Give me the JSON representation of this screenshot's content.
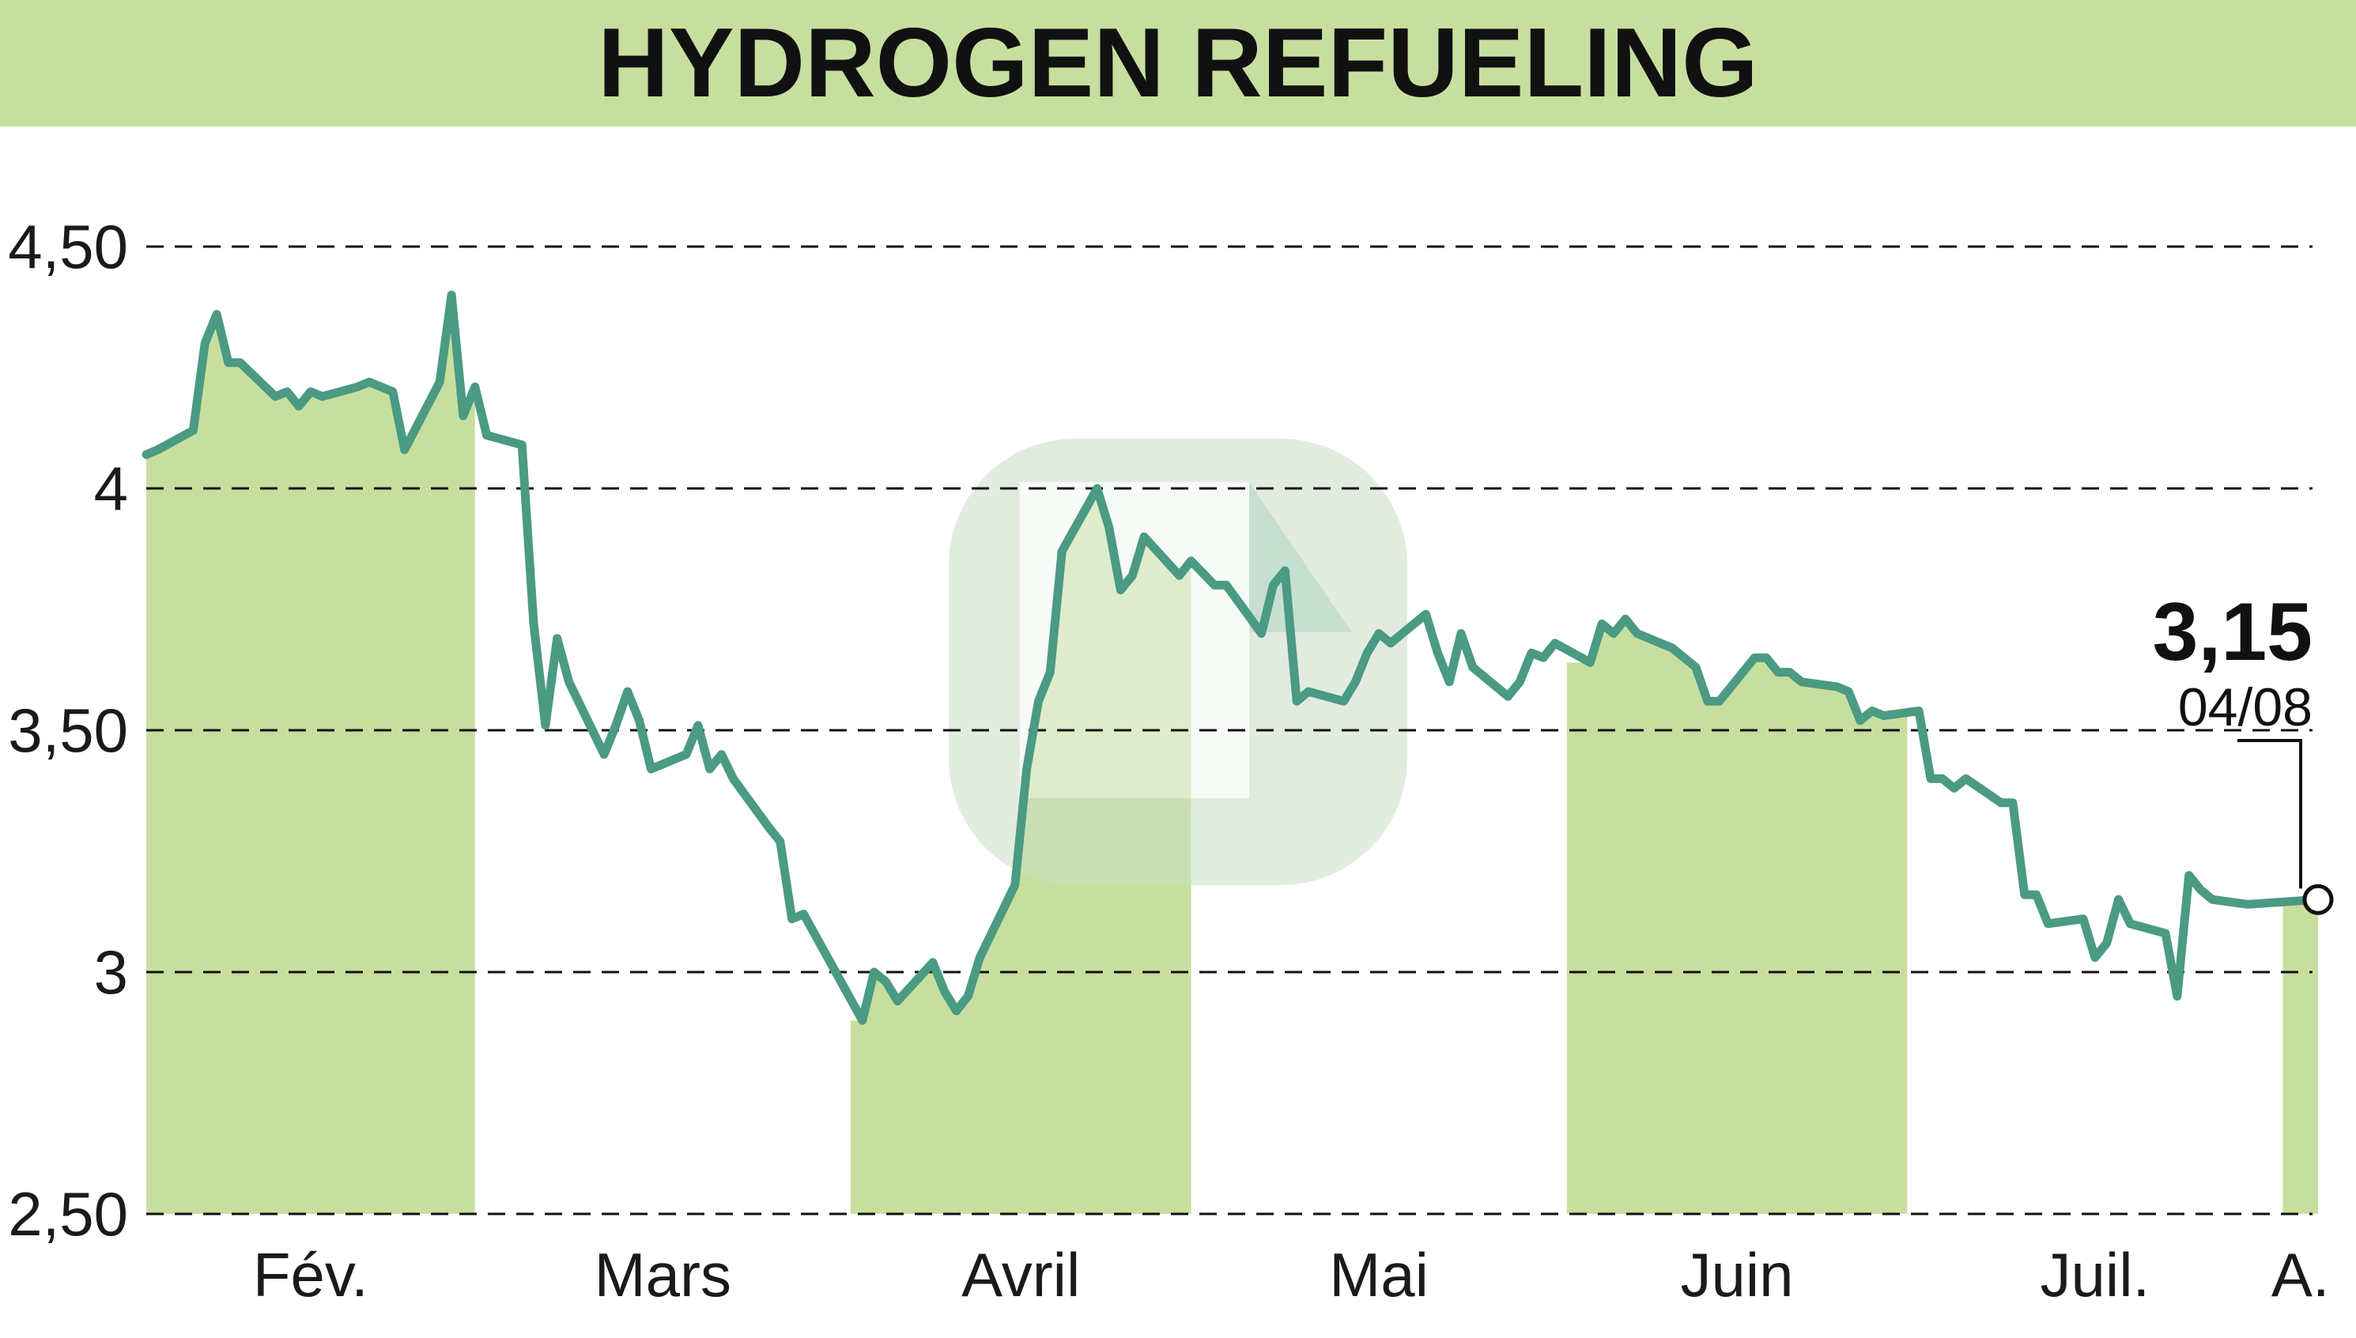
{
  "title": "HYDROGEN REFUELING",
  "colors": {
    "title_band": "#c7df9e",
    "month_shade": "#c7df9e",
    "line": "#4a9a84",
    "grid": "#111111",
    "watermark": "#c9dec5"
  },
  "watermark": "logo",
  "chart_data": {
    "type": "line",
    "title": "HYDROGEN REFUELING",
    "xlabel": "",
    "ylabel": "",
    "ylim": [
      2.5,
      4.5
    ],
    "yticks": [
      {
        "value": 4.5,
        "label": "4,50"
      },
      {
        "value": 4.0,
        "label": "4"
      },
      {
        "value": 3.5,
        "label": "3,50"
      },
      {
        "value": 3.0,
        "label": "3"
      },
      {
        "value": 2.5,
        "label": "2,50"
      }
    ],
    "grid": "horizontal dashed",
    "month_labels": [
      "Fév.",
      "Mars",
      "Avril",
      "Mai",
      "Juin",
      "Juil.",
      "A."
    ],
    "shaded_months": [
      "Fév.",
      "Avril",
      "Juin",
      "A."
    ],
    "x_start": "2024-02-01",
    "x_end": "2024-08-04",
    "series": [
      {
        "values": [
          [
            "2024-02-01",
            4.07
          ],
          [
            "2024-02-02",
            4.08
          ],
          [
            "2024-02-05",
            4.12
          ],
          [
            "2024-02-06",
            4.3
          ],
          [
            "2024-02-07",
            4.36
          ],
          [
            "2024-02-08",
            4.26
          ],
          [
            "2024-02-09",
            4.26
          ],
          [
            "2024-02-12",
            4.19
          ],
          [
            "2024-02-13",
            4.2
          ],
          [
            "2024-02-14",
            4.17
          ],
          [
            "2024-02-15",
            4.2
          ],
          [
            "2024-02-16",
            4.19
          ],
          [
            "2024-02-19",
            4.21
          ],
          [
            "2024-02-20",
            4.22
          ],
          [
            "2024-02-22",
            4.2
          ],
          [
            "2024-02-23",
            4.08
          ],
          [
            "2024-02-26",
            4.22
          ],
          [
            "2024-02-27",
            4.4
          ],
          [
            "2024-02-28",
            4.15
          ],
          [
            "2024-02-29",
            4.21
          ],
          [
            "2024-03-01",
            4.11
          ],
          [
            "2024-03-04",
            4.09
          ],
          [
            "2024-03-05",
            3.72
          ],
          [
            "2024-03-06",
            3.51
          ],
          [
            "2024-03-07",
            3.69
          ],
          [
            "2024-03-08",
            3.6
          ],
          [
            "2024-03-11",
            3.45
          ],
          [
            "2024-03-12",
            3.51
          ],
          [
            "2024-03-13",
            3.58
          ],
          [
            "2024-03-14",
            3.52
          ],
          [
            "2024-03-15",
            3.42
          ],
          [
            "2024-03-18",
            3.45
          ],
          [
            "2024-03-19",
            3.51
          ],
          [
            "2024-03-20",
            3.42
          ],
          [
            "2024-03-21",
            3.45
          ],
          [
            "2024-03-22",
            3.4
          ],
          [
            "2024-03-25",
            3.3
          ],
          [
            "2024-03-26",
            3.27
          ],
          [
            "2024-03-27",
            3.11
          ],
          [
            "2024-03-28",
            3.12
          ],
          [
            "2024-04-02",
            2.9
          ],
          [
            "2024-04-03",
            3.0
          ],
          [
            "2024-04-04",
            2.98
          ],
          [
            "2024-04-05",
            2.94
          ],
          [
            "2024-04-08",
            3.02
          ],
          [
            "2024-04-09",
            2.96
          ],
          [
            "2024-04-10",
            2.92
          ],
          [
            "2024-04-11",
            2.95
          ],
          [
            "2024-04-12",
            3.03
          ],
          [
            "2024-04-15",
            3.18
          ],
          [
            "2024-04-16",
            3.42
          ],
          [
            "2024-04-17",
            3.56
          ],
          [
            "2024-04-18",
            3.62
          ],
          [
            "2024-04-19",
            3.87
          ],
          [
            "2024-04-22",
            4.0
          ],
          [
            "2024-04-23",
            3.92
          ],
          [
            "2024-04-24",
            3.79
          ],
          [
            "2024-04-25",
            3.82
          ],
          [
            "2024-04-26",
            3.9
          ],
          [
            "2024-04-29",
            3.82
          ],
          [
            "2024-04-30",
            3.85
          ],
          [
            "2024-05-02",
            3.8
          ],
          [
            "2024-05-03",
            3.8
          ],
          [
            "2024-05-06",
            3.7
          ],
          [
            "2024-05-07",
            3.8
          ],
          [
            "2024-05-08",
            3.83
          ],
          [
            "2024-05-09",
            3.56
          ],
          [
            "2024-05-10",
            3.58
          ],
          [
            "2024-05-13",
            3.56
          ],
          [
            "2024-05-14",
            3.6
          ],
          [
            "2024-05-15",
            3.66
          ],
          [
            "2024-05-16",
            3.7
          ],
          [
            "2024-05-17",
            3.68
          ],
          [
            "2024-05-20",
            3.74
          ],
          [
            "2024-05-21",
            3.66
          ],
          [
            "2024-05-22",
            3.6
          ],
          [
            "2024-05-23",
            3.7
          ],
          [
            "2024-05-24",
            3.63
          ],
          [
            "2024-05-27",
            3.57
          ],
          [
            "2024-05-28",
            3.6
          ],
          [
            "2024-05-29",
            3.66
          ],
          [
            "2024-05-30",
            3.65
          ],
          [
            "2024-05-31",
            3.68
          ],
          [
            "2024-06-03",
            3.64
          ],
          [
            "2024-06-04",
            3.72
          ],
          [
            "2024-06-05",
            3.7
          ],
          [
            "2024-06-06",
            3.73
          ],
          [
            "2024-06-07",
            3.7
          ],
          [
            "2024-06-10",
            3.67
          ],
          [
            "2024-06-11",
            3.65
          ],
          [
            "2024-06-12",
            3.63
          ],
          [
            "2024-06-13",
            3.56
          ],
          [
            "2024-06-14",
            3.56
          ],
          [
            "2024-06-17",
            3.65
          ],
          [
            "2024-06-18",
            3.65
          ],
          [
            "2024-06-19",
            3.62
          ],
          [
            "2024-06-20",
            3.62
          ],
          [
            "2024-06-21",
            3.6
          ],
          [
            "2024-06-24",
            3.59
          ],
          [
            "2024-06-25",
            3.58
          ],
          [
            "2024-06-26",
            3.52
          ],
          [
            "2024-06-27",
            3.54
          ],
          [
            "2024-06-28",
            3.53
          ],
          [
            "2024-07-01",
            3.54
          ],
          [
            "2024-07-02",
            3.4
          ],
          [
            "2024-07-03",
            3.4
          ],
          [
            "2024-07-04",
            3.38
          ],
          [
            "2024-07-05",
            3.4
          ],
          [
            "2024-07-08",
            3.35
          ],
          [
            "2024-07-09",
            3.35
          ],
          [
            "2024-07-10",
            3.16
          ],
          [
            "2024-07-11",
            3.16
          ],
          [
            "2024-07-12",
            3.1
          ],
          [
            "2024-07-15",
            3.11
          ],
          [
            "2024-07-16",
            3.03
          ],
          [
            "2024-07-17",
            3.06
          ],
          [
            "2024-07-18",
            3.15
          ],
          [
            "2024-07-19",
            3.1
          ],
          [
            "2024-07-22",
            3.08
          ],
          [
            "2024-07-23",
            2.95
          ],
          [
            "2024-07-24",
            3.2
          ],
          [
            "2024-07-25",
            3.17
          ],
          [
            "2024-07-26",
            3.15
          ],
          [
            "2024-07-29",
            3.14
          ],
          [
            "2024-08-04",
            3.15
          ]
        ]
      }
    ],
    "last_value": {
      "label": "3,15",
      "date": "04/08",
      "value": 3.15
    }
  }
}
